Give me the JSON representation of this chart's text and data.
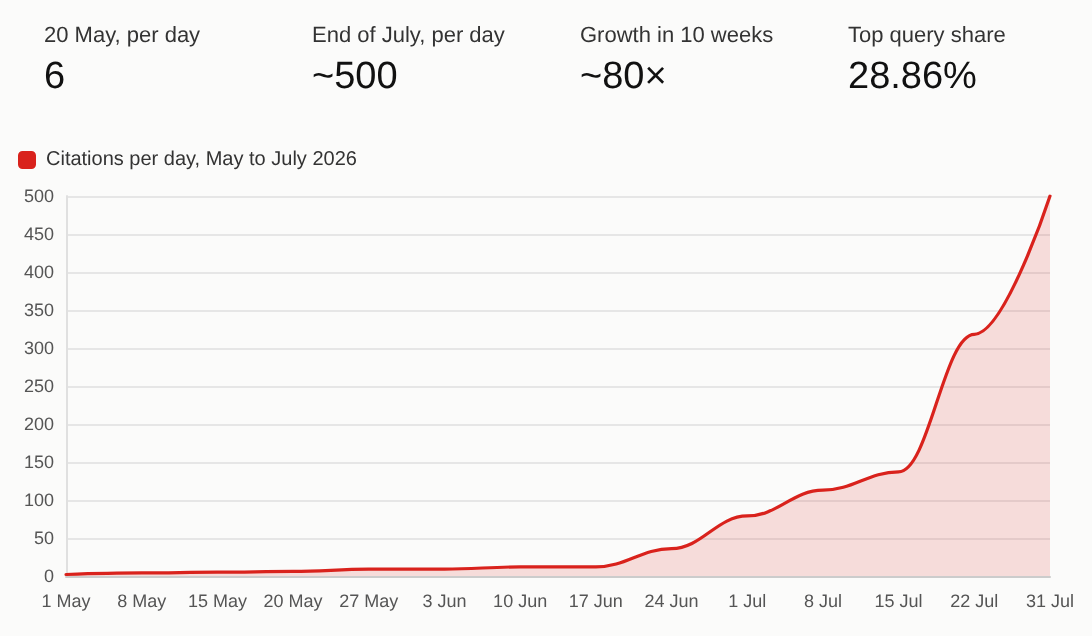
{
  "chart_data": [
    {
      "type": "other",
      "annotations": [
        "20 May, per day",
        "6",
        "End of July, per day",
        "~500",
        "Growth in 10 weeks",
        "~80×",
        "Top query share",
        "28.86%"
      ]
    },
    {
      "type": "area",
      "categories": [
        "1 May",
        "8 May",
        "15 May",
        "20 May",
        "27 May",
        "3 Jun",
        "10 Jun",
        "17 Jun",
        "24 Jun",
        "1 Jul",
        "8 Jul",
        "15 Jul",
        "22 Jul",
        "31 Jul"
      ],
      "series": [
        {
          "name": "Citations per day, May to July 2026",
          "color": "#d9221c",
          "values": [
            2,
            4,
            5,
            6,
            9,
            9,
            12,
            12,
            36,
            79,
            113,
            137,
            318,
            500
          ]
        }
      ],
      "ylim": [
        0,
        500
      ],
      "yticks": [
        0,
        50,
        100,
        150,
        200,
        250,
        300,
        350,
        400,
        450,
        500
      ],
      "grid": "y",
      "legend": "top left",
      "marker": "none"
    }
  ]
}
